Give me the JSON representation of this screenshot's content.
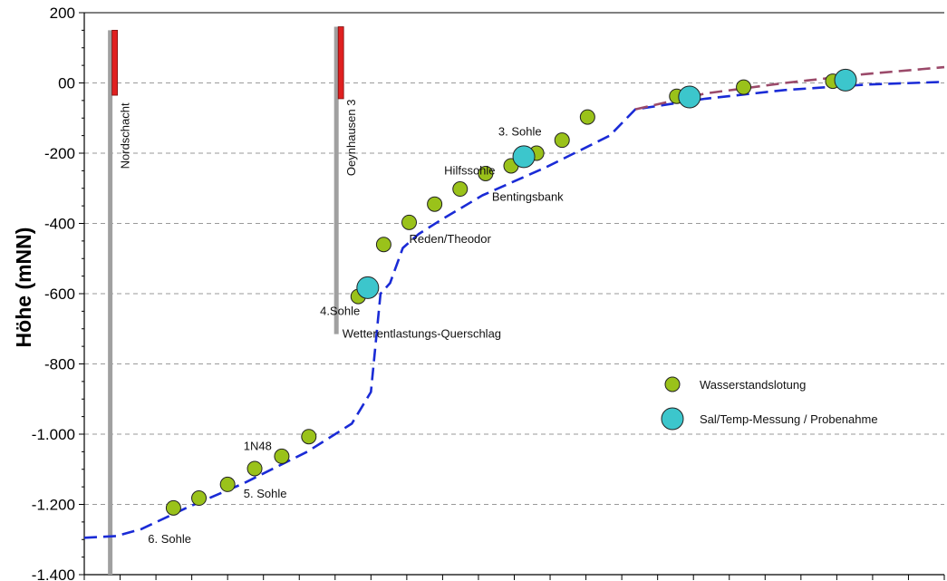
{
  "chart_data": {
    "type": "line",
    "title": "",
    "xlabel": "",
    "ylabel": "Höhe (mNN)",
    "ylim": [
      -1400,
      200
    ],
    "y_ticks": [
      200,
      0,
      -200,
      -400,
      -600,
      -800,
      -1000,
      -1200,
      -1400
    ],
    "y_tick_labels": [
      "200",
      "00",
      "-200",
      "-400",
      "-600",
      "-800",
      "-1.000",
      "-1.200",
      "-1.400"
    ],
    "x_range": [
      0,
      27
    ],
    "x_tick_count": 24,
    "grid": "horizontal dashed",
    "legend_position": "right-middle",
    "colors": {
      "blue_line": "#1a2bd6",
      "purple_line": "#9b4a6a",
      "green_marker": "#9ac21a",
      "cyan_marker": "#3cc6cc",
      "shaft": "#a0a0a0",
      "shaft_cap": "#e02020"
    },
    "series": [
      {
        "style": "blue-dashed",
        "x": [
          0.0,
          1.0,
          1.8,
          3.2,
          5.0,
          7.0,
          8.4,
          9.0,
          9.3,
          9.6,
          10.0,
          10.5,
          11.2,
          12.5,
          14.5,
          16.5,
          17.3,
          19.5,
          22.0,
          24.5,
          27.0
        ],
        "y": [
          -1295,
          -1290,
          -1270,
          -1210,
          -1140,
          -1050,
          -970,
          -880,
          -600,
          -570,
          -470,
          -430,
          -390,
          -320,
          -240,
          -150,
          -75,
          -45,
          -20,
          -5,
          3
        ]
      },
      {
        "style": "purple-dashed",
        "x": [
          17.3,
          19.5,
          22.0,
          24.5,
          27.0
        ],
        "y": [
          -75,
          -30,
          0,
          25,
          45
        ]
      }
    ],
    "markers": [
      {
        "kind": "Wasserstandslotung",
        "points": [
          {
            "x": 2.8,
            "y": -1210
          },
          {
            "x": 3.6,
            "y": -1182
          },
          {
            "x": 4.5,
            "y": -1143
          },
          {
            "x": 5.35,
            "y": -1098
          },
          {
            "x": 6.2,
            "y": -1063
          },
          {
            "x": 7.05,
            "y": -1007
          },
          {
            "x": 8.6,
            "y": -608
          },
          {
            "x": 9.4,
            "y": -460
          },
          {
            "x": 10.2,
            "y": -397
          },
          {
            "x": 11.0,
            "y": -345
          },
          {
            "x": 11.8,
            "y": -302
          },
          {
            "x": 12.6,
            "y": -258
          },
          {
            "x": 13.4,
            "y": -236
          },
          {
            "x": 14.2,
            "y": -200
          },
          {
            "x": 15.0,
            "y": -163
          },
          {
            "x": 15.8,
            "y": -97
          },
          {
            "x": 18.6,
            "y": -38
          },
          {
            "x": 20.7,
            "y": -12
          },
          {
            "x": 23.5,
            "y": 5
          }
        ]
      },
      {
        "kind": "Sal/Temp-Messung / Probenahme",
        "points": [
          {
            "x": 8.9,
            "y": -583
          },
          {
            "x": 13.8,
            "y": -210
          },
          {
            "x": 19.0,
            "y": -40
          },
          {
            "x": 23.9,
            "y": 8
          }
        ]
      }
    ],
    "shafts": [
      {
        "label": "Nordschacht",
        "x": 0.9,
        "top": 150,
        "bottom": -1400,
        "cap_bottom": -35
      },
      {
        "label": "Oeynhausen 3",
        "x": 8.0,
        "top": 160,
        "bottom": -715,
        "cap_bottom": -45
      }
    ],
    "annotations": [
      {
        "text": "6. Sohle",
        "x": 2.0,
        "y": -1310
      },
      {
        "text": "5. Sohle",
        "x": 5.0,
        "y": -1180
      },
      {
        "text": "1N48",
        "x": 5.0,
        "y": -1045
      },
      {
        "text": "4.Sohle",
        "x": 7.4,
        "y": -660
      },
      {
        "text": "Wetterentlastungs-Querschlag",
        "x": 8.1,
        "y": -725
      },
      {
        "text": "Reden/Theodor",
        "x": 10.2,
        "y": -455
      },
      {
        "text": "Hilfssohle",
        "x": 11.3,
        "y": -260
      },
      {
        "text": "Bentingsbank",
        "x": 12.8,
        "y": -335
      },
      {
        "text": "3. Sohle",
        "x": 13.0,
        "y": -150
      }
    ],
    "legend": [
      {
        "kind": "Wasserstandslotung",
        "label": "Wasserstandslotung"
      },
      {
        "kind": "Sal/Temp-Messung / Probenahme",
        "label": "Sal/Temp-Messung / Probenahme"
      }
    ]
  }
}
